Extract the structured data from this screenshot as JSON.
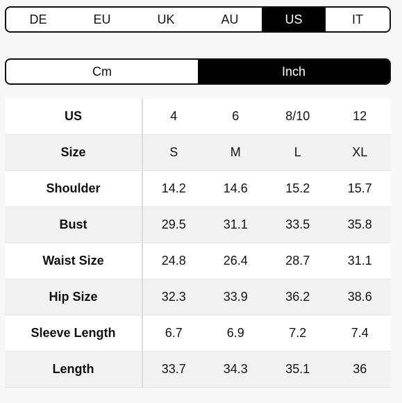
{
  "region_tabs": [
    {
      "label": "DE",
      "active": false
    },
    {
      "label": "EU",
      "active": false
    },
    {
      "label": "UK",
      "active": false
    },
    {
      "label": "AU",
      "active": false
    },
    {
      "label": "US",
      "active": true
    },
    {
      "label": "IT",
      "active": false
    }
  ],
  "unit_toggle": [
    {
      "label": "Cm",
      "active": false
    },
    {
      "label": "Inch",
      "active": true
    }
  ],
  "size_table": {
    "rows": [
      {
        "label": "US",
        "values": [
          "4",
          "6",
          "8/10",
          "12"
        ]
      },
      {
        "label": "Size",
        "values": [
          "S",
          "M",
          "L",
          "XL"
        ]
      },
      {
        "label": "Shoulder",
        "values": [
          "14.2",
          "14.6",
          "15.2",
          "15.7"
        ]
      },
      {
        "label": "Bust",
        "values": [
          "29.5",
          "31.1",
          "33.5",
          "35.8"
        ]
      },
      {
        "label": "Waist Size",
        "values": [
          "24.8",
          "26.4",
          "28.7",
          "31.1"
        ]
      },
      {
        "label": "Hip Size",
        "values": [
          "32.3",
          "33.9",
          "36.2",
          "38.6"
        ]
      },
      {
        "label": "Sleeve Length",
        "values": [
          "6.7",
          "6.9",
          "7.2",
          "7.4"
        ]
      },
      {
        "label": "Length",
        "values": [
          "33.7",
          "34.3",
          "35.1",
          "36"
        ]
      }
    ]
  }
}
